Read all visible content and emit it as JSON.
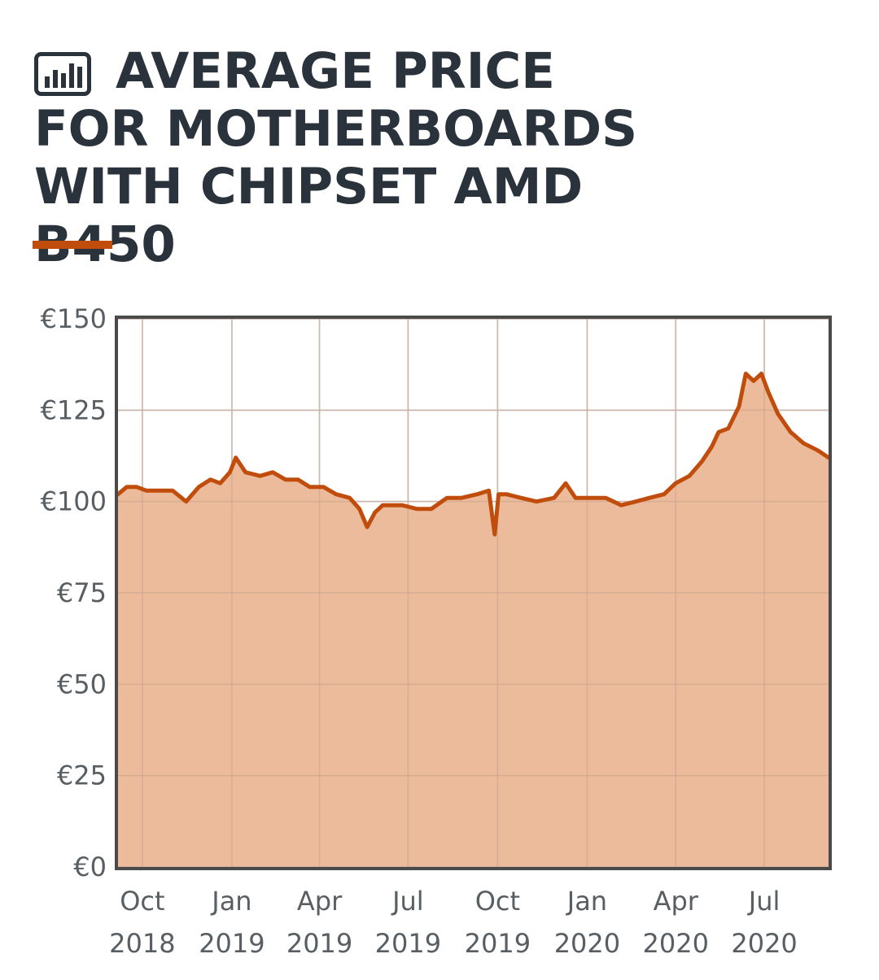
{
  "title": "AVERAGE PRICE FOR MOTHERBOARDS WITH CHIPSET AMD B450",
  "icon": "bar-chart-icon",
  "colors": {
    "title": "#2a323b",
    "accent": "#c14d0d",
    "line": "#c14d0d",
    "area": "#ebbb9b",
    "frame": "#4a4a4a",
    "grid": "#d7d7d7",
    "tick": "#595e63"
  },
  "chart_data": {
    "type": "area",
    "title": "AVERAGE PRICE FOR MOTHERBOARDS WITH CHIPSET AMD B450",
    "xlabel": "",
    "ylabel": "",
    "ylim": [
      0,
      150
    ],
    "xlim": [
      "2018-09-06",
      "2020-09-05"
    ],
    "y_ticks": [
      "€0",
      "€25",
      "€50",
      "€75",
      "€100",
      "€125",
      "€150"
    ],
    "y_tick_values": [
      0,
      25,
      50,
      75,
      100,
      125,
      150
    ],
    "x_ticks": [
      {
        "date": "2018-10-01",
        "label": [
          "Oct",
          "2018"
        ]
      },
      {
        "date": "2019-01-01",
        "label": [
          "Jan",
          "2019"
        ]
      },
      {
        "date": "2019-04-01",
        "label": [
          "Apr",
          "2019"
        ]
      },
      {
        "date": "2019-07-01",
        "label": [
          "Jul",
          "2019"
        ]
      },
      {
        "date": "2019-10-01",
        "label": [
          "Oct",
          "2019"
        ]
      },
      {
        "date": "2020-01-01",
        "label": [
          "Jan",
          "2020"
        ]
      },
      {
        "date": "2020-04-01",
        "label": [
          "Apr",
          "2020"
        ]
      },
      {
        "date": "2020-07-01",
        "label": [
          "Jul",
          "2020"
        ]
      }
    ],
    "grid": true,
    "legend": "none",
    "series": [
      {
        "x": [
          "2018-09-06",
          "2018-09-15",
          "2018-09-25",
          "2018-10-05",
          "2018-10-18",
          "2018-11-01",
          "2018-11-15",
          "2018-11-28",
          "2018-12-10",
          "2018-12-20",
          "2018-12-30",
          "2019-01-05",
          "2019-01-15",
          "2019-01-30",
          "2019-02-12",
          "2019-02-25",
          "2019-03-10",
          "2019-03-22",
          "2019-04-05",
          "2019-04-18",
          "2019-05-02",
          "2019-05-12",
          "2019-05-20",
          "2019-05-28",
          "2019-06-05",
          "2019-06-15",
          "2019-06-25",
          "2019-07-10",
          "2019-07-25",
          "2019-08-10",
          "2019-08-25",
          "2019-09-10",
          "2019-09-22",
          "2019-09-28",
          "2019-10-02",
          "2019-10-10",
          "2019-10-25",
          "2019-11-10",
          "2019-11-28",
          "2019-12-10",
          "2019-12-20",
          "2020-01-05",
          "2020-01-20",
          "2020-02-05",
          "2020-02-20",
          "2020-03-05",
          "2020-03-20",
          "2020-04-01",
          "2020-04-15",
          "2020-04-28",
          "2020-05-08",
          "2020-05-15",
          "2020-05-25",
          "2020-06-05",
          "2020-06-12",
          "2020-06-20",
          "2020-06-28",
          "2020-07-05",
          "2020-07-15",
          "2020-07-28",
          "2020-08-10",
          "2020-08-25",
          "2020-09-05"
        ],
        "y": [
          102,
          104,
          104,
          103,
          103,
          103,
          100,
          104,
          106,
          105,
          108,
          112,
          108,
          107,
          108,
          106,
          106,
          104,
          104,
          102,
          101,
          98,
          93,
          97,
          99,
          99,
          99,
          98,
          98,
          101,
          101,
          102,
          103,
          91,
          102,
          102,
          101,
          100,
          101,
          105,
          101,
          101,
          101,
          99,
          100,
          101,
          102,
          105,
          107,
          111,
          115,
          119,
          120,
          126,
          135,
          133,
          135,
          130,
          124,
          119,
          116,
          114,
          112
        ]
      }
    ]
  }
}
